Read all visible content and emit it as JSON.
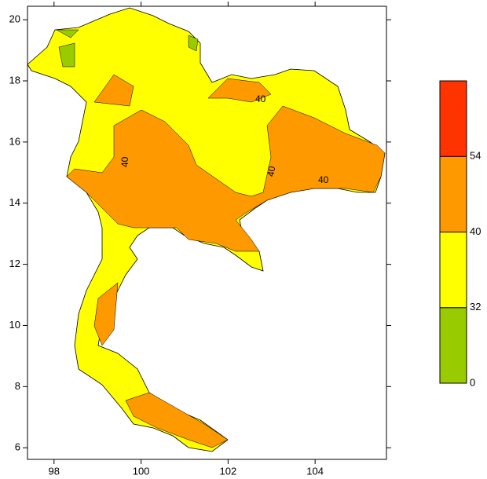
{
  "chart_data": {
    "type": "map",
    "xlim": [
      97.39,
      105.64
    ],
    "ylim": [
      5.62,
      20.44
    ],
    "xticks": [
      98,
      100,
      102,
      104
    ],
    "yticks": [
      6,
      8,
      10,
      12,
      14,
      16,
      18,
      20
    ],
    "annotations": [
      "40",
      "40",
      "40",
      "40"
    ],
    "colorbar": {
      "labels": [
        0,
        32,
        40,
        54
      ],
      "colors": [
        "#99cc00",
        "#ffff00",
        "#ff9900",
        "#ff3300"
      ]
    }
  }
}
